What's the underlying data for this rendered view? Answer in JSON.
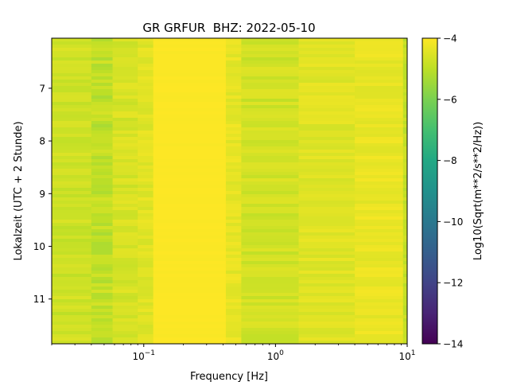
{
  "chart_data": {
    "type": "heatmap",
    "title": "GR GRFUR  BHZ: 2022-05-10",
    "xlabel": "Frequency [Hz]",
    "ylabel": "Lokalzeit (UTC + 2 Stunde)",
    "x_scale": "log",
    "xlim": [
      0.02,
      10
    ],
    "ylim": [
      11.85,
      6.05
    ],
    "x_ticks": [
      {
        "value": 0.1,
        "base": "10",
        "exp": "−1"
      },
      {
        "value": 1,
        "base": "10",
        "exp": "0"
      },
      {
        "value": 10,
        "base": "10",
        "exp": "1"
      }
    ],
    "y_ticks": [
      {
        "value": 7,
        "label": "7"
      },
      {
        "value": 8,
        "label": "8"
      },
      {
        "value": 9,
        "label": "9"
      },
      {
        "value": 10,
        "label": "10"
      },
      {
        "value": 11,
        "label": "11"
      }
    ],
    "colormap": "viridis",
    "colorbar": {
      "label": "Log10(Sqrt(m**2/s**2/Hz))",
      "range": [
        -14,
        -4
      ],
      "ticks": [
        {
          "value": -4,
          "label": "−4"
        },
        {
          "value": -6,
          "label": "−6"
        },
        {
          "value": -8,
          "label": "−8"
        },
        {
          "value": -10,
          "label": "−10"
        },
        {
          "value": -12,
          "label": "−12"
        },
        {
          "value": -14,
          "label": "−14"
        }
      ]
    },
    "frequency_bands": [
      {
        "f_start": 0.02,
        "f_end": 0.04,
        "value": -4.75
      },
      {
        "f_start": 0.04,
        "f_end": 0.058,
        "value": -4.95
      },
      {
        "f_start": 0.058,
        "f_end": 0.09,
        "value": -4.6
      },
      {
        "f_start": 0.09,
        "f_end": 0.118,
        "value": -4.45
      },
      {
        "f_start": 0.118,
        "f_end": 0.42,
        "value": -4.02
      },
      {
        "f_start": 0.42,
        "f_end": 0.55,
        "value": -4.35
      },
      {
        "f_start": 0.55,
        "f_end": 1.5,
        "value": -4.7
      },
      {
        "f_start": 1.5,
        "f_end": 4.0,
        "value": -4.45
      },
      {
        "f_start": 4.0,
        "f_end": 9.3,
        "value": -4.3
      },
      {
        "f_start": 9.3,
        "f_end": 10.0,
        "value": -4.9
      }
    ]
  }
}
